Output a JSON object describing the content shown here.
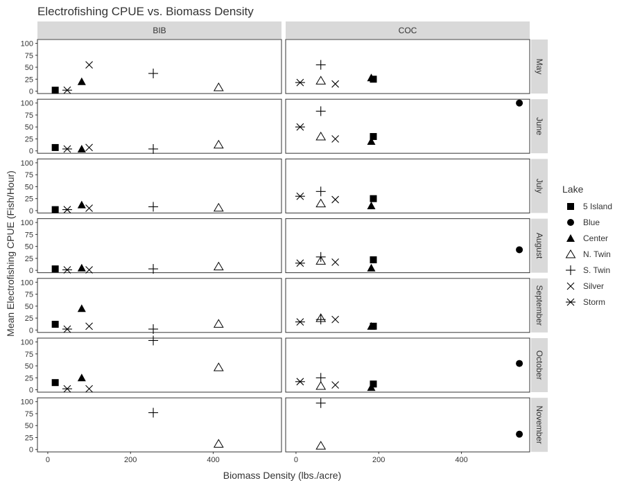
{
  "chart_data": {
    "type": "scatter",
    "title": "Electrofishing CPUE vs. Biomass Density",
    "xlabel": "Biomass Density (lbs./acre)",
    "ylabel": "Mean Electrofishing CPUE (Fish/Hour)",
    "xlim": [
      -25,
      565
    ],
    "ylim": [
      -5,
      108
    ],
    "x_ticks": [
      0,
      200,
      400
    ],
    "y_ticks": [
      0,
      25,
      50,
      75,
      100
    ],
    "x_tick_labels": [
      "0",
      "200",
      "400"
    ],
    "y_tick_labels": [
      "0",
      "25",
      "50",
      "75",
      "100"
    ],
    "grid": false,
    "legend_position": "right",
    "column_facets": [
      "BIB",
      "COC"
    ],
    "row_facets": [
      "May",
      "June",
      "July",
      "August",
      "September",
      "October",
      "November"
    ],
    "legend": {
      "title": "Lake",
      "entries": [
        {
          "name": "5 Island",
          "shape": "square"
        },
        {
          "name": "Blue",
          "shape": "circle"
        },
        {
          "name": "Center",
          "shape": "triangle"
        },
        {
          "name": "N. Twin",
          "shape": "triangle-open"
        },
        {
          "name": "S. Twin",
          "shape": "plus"
        },
        {
          "name": "Silver",
          "shape": "cross"
        },
        {
          "name": "Storm",
          "shape": "asterisk"
        }
      ]
    },
    "points": [
      {
        "column": "BIB",
        "month": "May",
        "lake": "5 Island",
        "x": 18,
        "y": 2
      },
      {
        "column": "BIB",
        "month": "May",
        "lake": "Storm",
        "x": 47,
        "y": 2
      },
      {
        "column": "BIB",
        "month": "May",
        "lake": "Center",
        "x": 82,
        "y": 20
      },
      {
        "column": "BIB",
        "month": "May",
        "lake": "Silver",
        "x": 100,
        "y": 55
      },
      {
        "column": "BIB",
        "month": "May",
        "lake": "S. Twin",
        "x": 255,
        "y": 37
      },
      {
        "column": "BIB",
        "month": "May",
        "lake": "N. Twin",
        "x": 413,
        "y": 8
      },
      {
        "column": "BIB",
        "month": "June",
        "lake": "5 Island",
        "x": 18,
        "y": 7
      },
      {
        "column": "BIB",
        "month": "June",
        "lake": "Storm",
        "x": 47,
        "y": 4
      },
      {
        "column": "BIB",
        "month": "June",
        "lake": "Center",
        "x": 82,
        "y": 4
      },
      {
        "column": "BIB",
        "month": "June",
        "lake": "Silver",
        "x": 100,
        "y": 7
      },
      {
        "column": "BIB",
        "month": "June",
        "lake": "S. Twin",
        "x": 255,
        "y": 4
      },
      {
        "column": "BIB",
        "month": "June",
        "lake": "N. Twin",
        "x": 413,
        "y": 13
      },
      {
        "column": "BIB",
        "month": "July",
        "lake": "5 Island",
        "x": 18,
        "y": 2
      },
      {
        "column": "BIB",
        "month": "July",
        "lake": "Storm",
        "x": 47,
        "y": 2
      },
      {
        "column": "BIB",
        "month": "July",
        "lake": "Center",
        "x": 82,
        "y": 12
      },
      {
        "column": "BIB",
        "month": "July",
        "lake": "Silver",
        "x": 100,
        "y": 5
      },
      {
        "column": "BIB",
        "month": "July",
        "lake": "S. Twin",
        "x": 255,
        "y": 8
      },
      {
        "column": "BIB",
        "month": "July",
        "lake": "N. Twin",
        "x": 413,
        "y": 6
      },
      {
        "column": "BIB",
        "month": "August",
        "lake": "5 Island",
        "x": 18,
        "y": 3
      },
      {
        "column": "BIB",
        "month": "August",
        "lake": "Storm",
        "x": 47,
        "y": 1
      },
      {
        "column": "BIB",
        "month": "August",
        "lake": "Center",
        "x": 82,
        "y": 5
      },
      {
        "column": "BIB",
        "month": "August",
        "lake": "Silver",
        "x": 100,
        "y": 1
      },
      {
        "column": "BIB",
        "month": "August",
        "lake": "S. Twin",
        "x": 255,
        "y": 3
      },
      {
        "column": "BIB",
        "month": "August",
        "lake": "N. Twin",
        "x": 413,
        "y": 8
      },
      {
        "column": "BIB",
        "month": "September",
        "lake": "5 Island",
        "x": 18,
        "y": 12
      },
      {
        "column": "BIB",
        "month": "September",
        "lake": "Storm",
        "x": 47,
        "y": 2
      },
      {
        "column": "BIB",
        "month": "September",
        "lake": "Center",
        "x": 82,
        "y": 45
      },
      {
        "column": "BIB",
        "month": "September",
        "lake": "Silver",
        "x": 100,
        "y": 8
      },
      {
        "column": "BIB",
        "month": "September",
        "lake": "S. Twin",
        "x": 255,
        "y": 2
      },
      {
        "column": "BIB",
        "month": "September",
        "lake": "N. Twin",
        "x": 413,
        "y": 13
      },
      {
        "column": "BIB",
        "month": "October",
        "lake": "5 Island",
        "x": 18,
        "y": 15
      },
      {
        "column": "BIB",
        "month": "October",
        "lake": "Storm",
        "x": 47,
        "y": 2
      },
      {
        "column": "BIB",
        "month": "October",
        "lake": "Center",
        "x": 82,
        "y": 25
      },
      {
        "column": "BIB",
        "month": "October",
        "lake": "Silver",
        "x": 100,
        "y": 2
      },
      {
        "column": "BIB",
        "month": "October",
        "lake": "S. Twin",
        "x": 255,
        "y": 103
      },
      {
        "column": "BIB",
        "month": "October",
        "lake": "N. Twin",
        "x": 413,
        "y": 47
      },
      {
        "column": "BIB",
        "month": "November",
        "lake": "S. Twin",
        "x": 255,
        "y": 77
      },
      {
        "column": "BIB",
        "month": "November",
        "lake": "N. Twin",
        "x": 413,
        "y": 12
      },
      {
        "column": "COC",
        "month": "May",
        "lake": "Storm",
        "x": 10,
        "y": 18
      },
      {
        "column": "COC",
        "month": "May",
        "lake": "N. Twin",
        "x": 60,
        "y": 22
      },
      {
        "column": "COC",
        "month": "May",
        "lake": "S. Twin",
        "x": 60,
        "y": 55
      },
      {
        "column": "COC",
        "month": "May",
        "lake": "Silver",
        "x": 95,
        "y": 15
      },
      {
        "column": "COC",
        "month": "May",
        "lake": "Center",
        "x": 182,
        "y": 28
      },
      {
        "column": "COC",
        "month": "May",
        "lake": "5 Island",
        "x": 187,
        "y": 25
      },
      {
        "column": "COC",
        "month": "June",
        "lake": "Storm",
        "x": 10,
        "y": 50
      },
      {
        "column": "COC",
        "month": "June",
        "lake": "N. Twin",
        "x": 60,
        "y": 30
      },
      {
        "column": "COC",
        "month": "June",
        "lake": "S. Twin",
        "x": 60,
        "y": 83
      },
      {
        "column": "COC",
        "month": "June",
        "lake": "Silver",
        "x": 95,
        "y": 25
      },
      {
        "column": "COC",
        "month": "June",
        "lake": "Center",
        "x": 182,
        "y": 20
      },
      {
        "column": "COC",
        "month": "June",
        "lake": "5 Island",
        "x": 187,
        "y": 30
      },
      {
        "column": "COC",
        "month": "June",
        "lake": "Blue",
        "x": 540,
        "y": 100
      },
      {
        "column": "COC",
        "month": "July",
        "lake": "Storm",
        "x": 10,
        "y": 30
      },
      {
        "column": "COC",
        "month": "July",
        "lake": "N. Twin",
        "x": 60,
        "y": 15
      },
      {
        "column": "COC",
        "month": "July",
        "lake": "S. Twin",
        "x": 60,
        "y": 40
      },
      {
        "column": "COC",
        "month": "July",
        "lake": "Silver",
        "x": 95,
        "y": 23
      },
      {
        "column": "COC",
        "month": "July",
        "lake": "Center",
        "x": 182,
        "y": 10
      },
      {
        "column": "COC",
        "month": "July",
        "lake": "5 Island",
        "x": 187,
        "y": 25
      },
      {
        "column": "COC",
        "month": "August",
        "lake": "Storm",
        "x": 10,
        "y": 15
      },
      {
        "column": "COC",
        "month": "August",
        "lake": "N. Twin",
        "x": 60,
        "y": 20
      },
      {
        "column": "COC",
        "month": "August",
        "lake": "S. Twin",
        "x": 60,
        "y": 28
      },
      {
        "column": "COC",
        "month": "August",
        "lake": "Silver",
        "x": 95,
        "y": 17
      },
      {
        "column": "COC",
        "month": "August",
        "lake": "Center",
        "x": 182,
        "y": 5
      },
      {
        "column": "COC",
        "month": "August",
        "lake": "5 Island",
        "x": 187,
        "y": 22
      },
      {
        "column": "COC",
        "month": "August",
        "lake": "Blue",
        "x": 540,
        "y": 43
      },
      {
        "column": "COC",
        "month": "September",
        "lake": "Storm",
        "x": 10,
        "y": 17
      },
      {
        "column": "COC",
        "month": "September",
        "lake": "N. Twin",
        "x": 60,
        "y": 25
      },
      {
        "column": "COC",
        "month": "September",
        "lake": "S. Twin",
        "x": 60,
        "y": 22
      },
      {
        "column": "COC",
        "month": "September",
        "lake": "Silver",
        "x": 95,
        "y": 22
      },
      {
        "column": "COC",
        "month": "September",
        "lake": "Center",
        "x": 182,
        "y": 8
      },
      {
        "column": "COC",
        "month": "September",
        "lake": "5 Island",
        "x": 187,
        "y": 8
      },
      {
        "column": "COC",
        "month": "October",
        "lake": "Storm",
        "x": 10,
        "y": 17
      },
      {
        "column": "COC",
        "month": "October",
        "lake": "N. Twin",
        "x": 60,
        "y": 8
      },
      {
        "column": "COC",
        "month": "October",
        "lake": "S. Twin",
        "x": 60,
        "y": 25
      },
      {
        "column": "COC",
        "month": "October",
        "lake": "Silver",
        "x": 95,
        "y": 10
      },
      {
        "column": "COC",
        "month": "October",
        "lake": "Center",
        "x": 182,
        "y": 5
      },
      {
        "column": "COC",
        "month": "October",
        "lake": "5 Island",
        "x": 187,
        "y": 12
      },
      {
        "column": "COC",
        "month": "October",
        "lake": "Blue",
        "x": 540,
        "y": 55
      },
      {
        "column": "COC",
        "month": "November",
        "lake": "N. Twin",
        "x": 60,
        "y": 8
      },
      {
        "column": "COC",
        "month": "November",
        "lake": "S. Twin",
        "x": 60,
        "y": 97
      },
      {
        "column": "COC",
        "month": "November",
        "lake": "Blue",
        "x": 540,
        "y": 32
      }
    ]
  }
}
